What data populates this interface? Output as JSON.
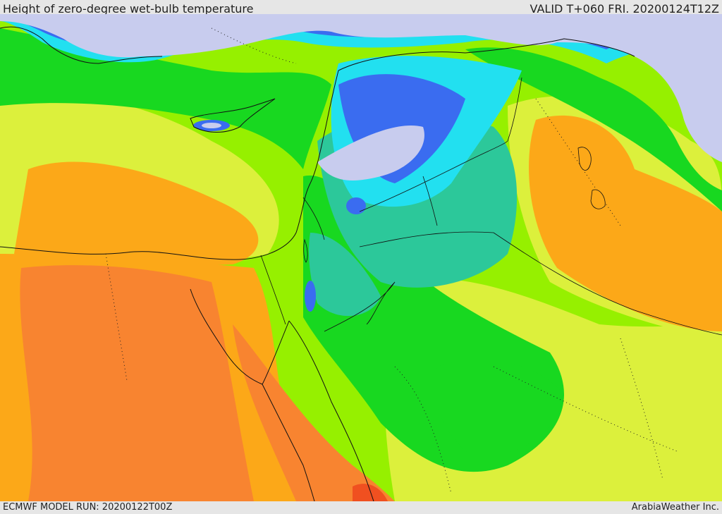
{
  "header": {
    "title": "Height of zero-degree wet-bulb temperature",
    "valid": "VALID T+060 FRI. 20200124T12Z"
  },
  "footer": {
    "model_run": "ECMWF MODEL RUN: 20200122T00Z",
    "credit": "ArabiaWeather Inc."
  },
  "palette": {
    "lowest": "#c8ccee",
    "blue": "#3a6cf0",
    "cyan": "#22e0f0",
    "teal": "#2cc89a",
    "green": "#18d820",
    "lime": "#96f000",
    "yellow": "#dcf03c",
    "orange": "#fca818",
    "dark_orange": "#f88430",
    "red": "#f05020"
  }
}
